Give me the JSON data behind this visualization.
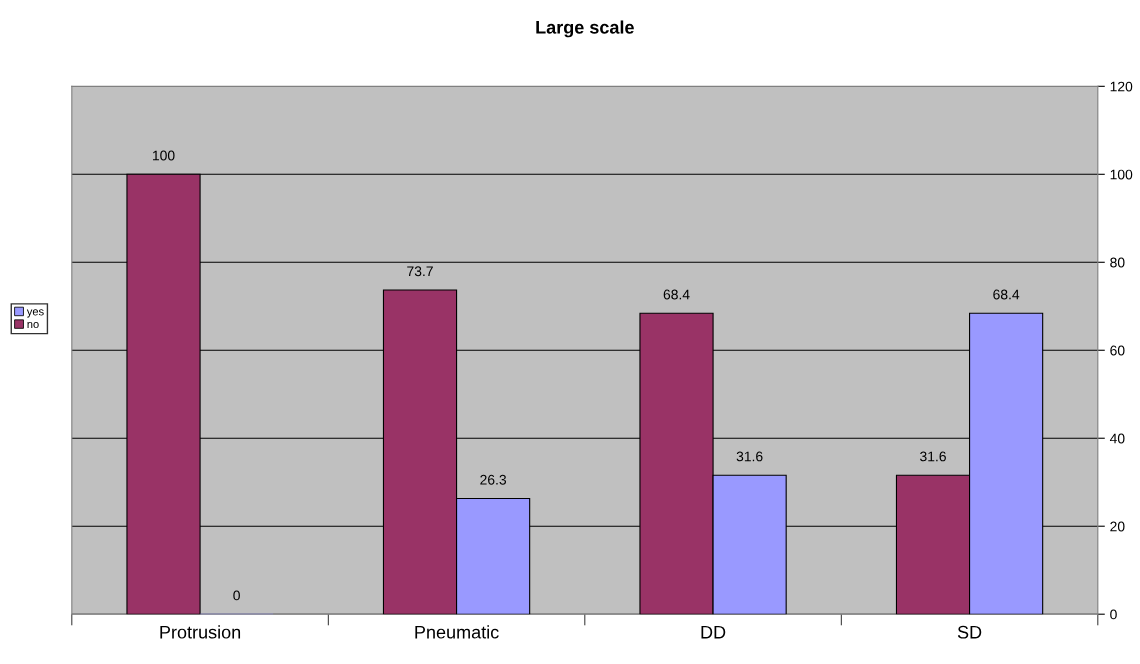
{
  "chart_data": {
    "type": "bar",
    "title": "Large scale",
    "categories": [
      "Protrusion",
      "Pneumatic",
      "DD",
      "SD"
    ],
    "series": [
      {
        "name": "no",
        "color": "#993366",
        "values": [
          100,
          73.7,
          68.4,
          31.6
        ]
      },
      {
        "name": "yes",
        "color": "#9999ff",
        "values": [
          0,
          26.3,
          31.6,
          68.4
        ]
      }
    ],
    "ylim": [
      0,
      120
    ],
    "yticks": [
      0,
      20,
      40,
      60,
      80,
      100,
      120
    ],
    "grid": "y",
    "legend": "left",
    "data_labels": true
  }
}
